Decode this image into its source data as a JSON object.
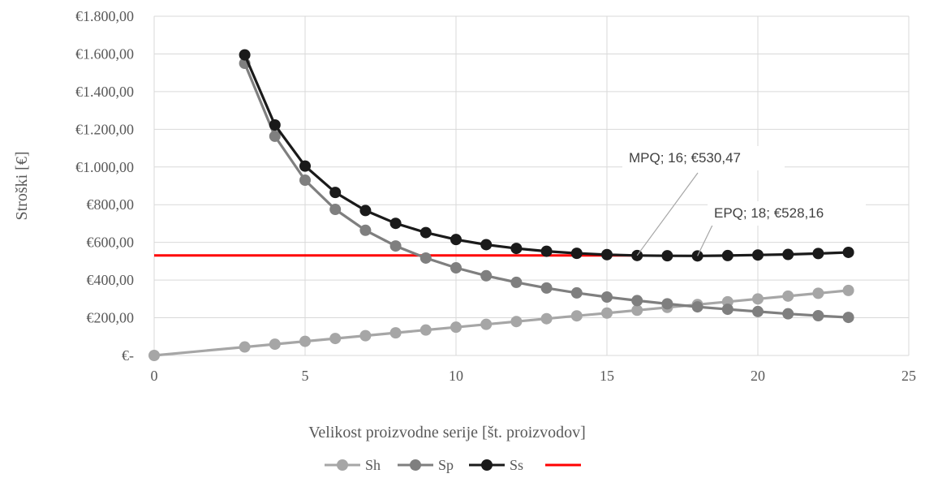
{
  "chart_data": {
    "type": "line",
    "title": "",
    "xlabel": "Velikost proizvodne serije [št. proizvodov]",
    "ylabel": "Stroški [€]",
    "xlim": [
      0,
      25
    ],
    "ylim": [
      0,
      1800
    ],
    "x_ticks": [
      "0",
      "5",
      "10",
      "15",
      "20",
      "25"
    ],
    "x_tick_values": [
      0,
      5,
      10,
      15,
      20,
      25
    ],
    "y_ticks": [
      "€-",
      "€200,00",
      "€400,00",
      "€600,00",
      "€800,00",
      "€1.000,00",
      "€1.200,00",
      "€1.400,00",
      "€1.600,00",
      "€1.800,00"
    ],
    "y_tick_values": [
      0,
      200,
      400,
      600,
      800,
      1000,
      1200,
      1400,
      1600,
      1800
    ],
    "grid": "vertical and horizontal major gridlines",
    "legend_position": "bottom",
    "series": [
      {
        "name": "Sh",
        "color": "#a6a6a6",
        "marker": "circle",
        "x": [
          0,
          3,
          4,
          5,
          6,
          7,
          8,
          9,
          10,
          11,
          12,
          13,
          14,
          15,
          16,
          17,
          18,
          19,
          20,
          21,
          22,
          23
        ],
        "values": [
          0,
          45,
          60,
          75,
          90,
          105,
          120,
          135,
          150,
          165,
          180,
          195,
          210,
          225,
          240,
          255,
          270,
          285,
          300,
          315,
          330,
          345
        ]
      },
      {
        "name": "Sp",
        "color": "#7f7f7f",
        "marker": "circle",
        "x": [
          3,
          4,
          5,
          6,
          7,
          8,
          9,
          10,
          11,
          12,
          13,
          14,
          15,
          16,
          17,
          18,
          19,
          20,
          21,
          22,
          23
        ],
        "values": [
          1550,
          1163,
          930,
          775,
          664,
          581,
          517,
          465,
          423,
          388,
          358,
          332,
          310,
          291,
          274,
          258,
          245,
          233,
          221,
          211,
          202
        ]
      },
      {
        "name": "Ss",
        "color": "#1a1a1a",
        "marker": "circle",
        "x": [
          3,
          4,
          5,
          6,
          7,
          8,
          9,
          10,
          11,
          12,
          13,
          14,
          15,
          16,
          17,
          18,
          19,
          20,
          21,
          22,
          23
        ],
        "values": [
          1595,
          1223,
          1005,
          865,
          769,
          701,
          652,
          615,
          588,
          568,
          553,
          542,
          535,
          530.47,
          529,
          528.16,
          530,
          533,
          536,
          541,
          547
        ]
      },
      {
        "name": "",
        "color": "#ff0000",
        "marker": "none",
        "x": [
          0,
          16
        ],
        "values": [
          530.47,
          530.47
        ]
      }
    ],
    "annotations": [
      {
        "text": "MPQ; 16;  €530,47",
        "x": 16,
        "y": 530.47
      },
      {
        "text": "EPQ; 18;  €528,16",
        "x": 18,
        "y": 528.16
      }
    ]
  }
}
